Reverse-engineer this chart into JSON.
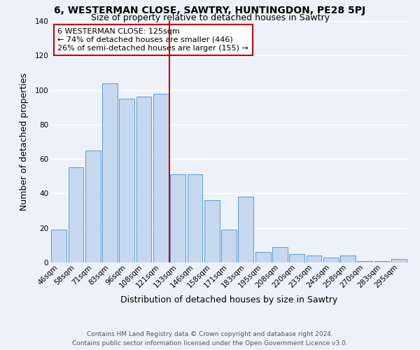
{
  "title": "6, WESTERMAN CLOSE, SAWTRY, HUNTINGDON, PE28 5PJ",
  "subtitle": "Size of property relative to detached houses in Sawtry",
  "xlabel": "Distribution of detached houses by size in Sawtry",
  "ylabel": "Number of detached properties",
  "categories": [
    "46sqm",
    "58sqm",
    "71sqm",
    "83sqm",
    "96sqm",
    "108sqm",
    "121sqm",
    "133sqm",
    "146sqm",
    "158sqm",
    "171sqm",
    "183sqm",
    "195sqm",
    "208sqm",
    "220sqm",
    "233sqm",
    "245sqm",
    "258sqm",
    "270sqm",
    "283sqm",
    "295sqm"
  ],
  "values": [
    19,
    55,
    65,
    104,
    95,
    96,
    98,
    51,
    51,
    36,
    19,
    38,
    6,
    9,
    5,
    4,
    3,
    4,
    1,
    1,
    2
  ],
  "bar_color": "#c5d8f0",
  "bar_edge_color": "#5b9bd5",
  "bg_color": "#edf2fa",
  "grid_color": "#ffffff",
  "vline_color": "#cc0000",
  "annotation_text": "6 WESTERMAN CLOSE: 125sqm\n← 74% of detached houses are smaller (446)\n26% of semi-detached houses are larger (155) →",
  "annotation_box_color": "#ffffff",
  "annotation_box_edge": "#cc0000",
  "footer1": "Contains HM Land Registry data © Crown copyright and database right 2024.",
  "footer2": "Contains public sector information licensed under the Open Government Licence v3.0.",
  "ylim": [
    0,
    140
  ],
  "title_fontsize": 10,
  "subtitle_fontsize": 9,
  "axis_label_fontsize": 9,
  "tick_fontsize": 7.5,
  "annotation_fontsize": 8,
  "footer_fontsize": 6.5
}
